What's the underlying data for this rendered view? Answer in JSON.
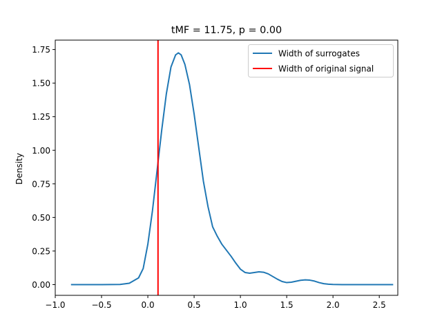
{
  "chart_data": {
    "type": "line",
    "title": "tMF = 11.75, p = 0.00",
    "xlabel": "",
    "ylabel": "Density",
    "xlim": [
      -1.0,
      2.7
    ],
    "ylim": [
      -0.08,
      1.82
    ],
    "xticks": [
      -1.0,
      -0.5,
      0.0,
      0.5,
      1.0,
      1.5,
      2.0,
      2.5
    ],
    "xtick_labels": [
      "−1.0",
      "−0.5",
      "0.0",
      "0.5",
      "1.0",
      "1.5",
      "2.0",
      "2.5"
    ],
    "yticks": [
      0.0,
      0.25,
      0.5,
      0.75,
      1.0,
      1.25,
      1.5,
      1.75
    ],
    "ytick_labels": [
      "0.00",
      "0.25",
      "0.50",
      "0.75",
      "1.00",
      "1.25",
      "1.50",
      "1.75"
    ],
    "grid": false,
    "legend_position": "upper-right",
    "series": [
      {
        "name": "Width of surrogates",
        "color": "#1f77b4",
        "x": [
          -0.83,
          -0.5,
          -0.3,
          -0.2,
          -0.1,
          -0.05,
          0.0,
          0.05,
          0.1,
          0.15,
          0.2,
          0.25,
          0.3,
          0.33,
          0.36,
          0.4,
          0.45,
          0.5,
          0.55,
          0.6,
          0.65,
          0.7,
          0.75,
          0.8,
          0.85,
          0.9,
          0.95,
          1.0,
          1.05,
          1.1,
          1.15,
          1.2,
          1.25,
          1.3,
          1.35,
          1.4,
          1.45,
          1.5,
          1.55,
          1.6,
          1.65,
          1.7,
          1.75,
          1.8,
          1.85,
          1.9,
          1.95,
          2.0,
          2.1,
          2.2,
          2.4,
          2.65
        ],
        "y": [
          0.0,
          0.0,
          0.001,
          0.01,
          0.05,
          0.12,
          0.3,
          0.55,
          0.85,
          1.15,
          1.42,
          1.62,
          1.71,
          1.725,
          1.71,
          1.64,
          1.49,
          1.27,
          1.02,
          0.77,
          0.58,
          0.43,
          0.36,
          0.3,
          0.255,
          0.21,
          0.16,
          0.115,
          0.09,
          0.085,
          0.09,
          0.095,
          0.092,
          0.08,
          0.06,
          0.04,
          0.023,
          0.015,
          0.018,
          0.025,
          0.032,
          0.035,
          0.033,
          0.026,
          0.015,
          0.007,
          0.003,
          0.001,
          0.0,
          0.0,
          0.0,
          0.0
        ]
      },
      {
        "name": "Width of original signal",
        "color": "#ff0000",
        "vline_x": 0.11
      }
    ]
  }
}
